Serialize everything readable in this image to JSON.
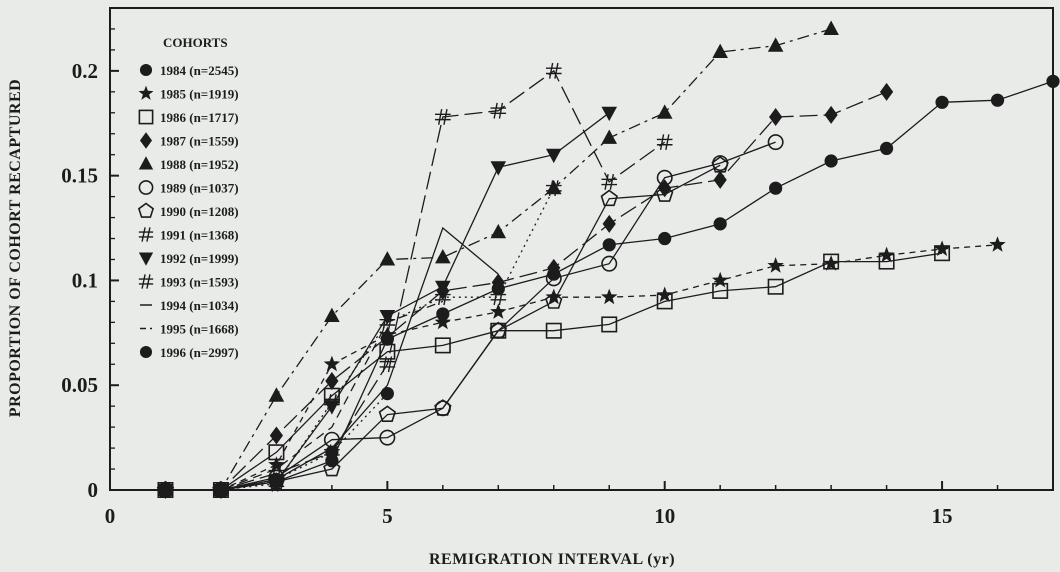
{
  "chart_data": {
    "type": "line",
    "title": "",
    "xlabel": "REMIGRATION INTERVAL (yr)",
    "ylabel": "PROPORTION OF COHORT RECAPTURED",
    "xlim": [
      0,
      17
    ],
    "ylim": [
      0,
      0.23
    ],
    "x_ticks": [
      0,
      5,
      10,
      15
    ],
    "x_tick_labels": [
      "0",
      "5",
      "10",
      "15"
    ],
    "y_ticks": [
      0,
      0.05,
      0.1,
      0.15,
      0.2
    ],
    "y_tick_labels": [
      "0",
      "0.05",
      "0.1",
      "0.15",
      "0.2"
    ],
    "grid": false,
    "legend": {
      "title": "COHORTS",
      "placement": "top-left"
    },
    "colors": {
      "ink": "#1c1c1c",
      "background": "#e9ebe9"
    },
    "series": [
      {
        "name": "1984 (n=2545)",
        "marker": "circle",
        "dash": "solid",
        "x": [
          1,
          2,
          3,
          4,
          5,
          6,
          7,
          8,
          9,
          10,
          11,
          12,
          13,
          14,
          15,
          16,
          17
        ],
        "y": [
          0,
          0,
          0.004,
          0.014,
          0.072,
          0.084,
          0.096,
          0.103,
          0.117,
          0.12,
          0.127,
          0.144,
          0.157,
          0.163,
          0.185,
          0.186,
          0.195
        ]
      },
      {
        "name": "1985 (n=1919)",
        "marker": "star",
        "dash": "short-dash",
        "x": [
          1,
          2,
          3,
          4,
          5,
          6,
          7,
          8,
          9,
          10,
          11,
          12,
          13,
          14,
          15,
          16
        ],
        "y": [
          0,
          0,
          0.012,
          0.06,
          0.074,
          0.08,
          0.085,
          0.092,
          0.092,
          0.093,
          0.1,
          0.107,
          0.108,
          0.112,
          0.115,
          0.117
        ]
      },
      {
        "name": "1986 (n=1717)",
        "marker": "square-open",
        "dash": "solid",
        "x": [
          1,
          2,
          3,
          4,
          5,
          6,
          7,
          8,
          9,
          10,
          11,
          12,
          13,
          14,
          15
        ],
        "y": [
          0,
          0,
          0.018,
          0.045,
          0.066,
          0.069,
          0.076,
          0.076,
          0.079,
          0.09,
          0.095,
          0.097,
          0.109,
          0.109,
          0.113
        ]
      },
      {
        "name": "1987 (n=1559)",
        "marker": "diamond",
        "dash": "long-dash",
        "x": [
          1,
          2,
          3,
          4,
          5,
          6,
          7,
          8,
          9,
          10,
          11,
          12,
          13,
          14
        ],
        "y": [
          0,
          0,
          0.026,
          0.052,
          0.073,
          0.095,
          0.099,
          0.106,
          0.127,
          0.144,
          0.148,
          0.178,
          0.179,
          0.19
        ]
      },
      {
        "name": "1988 (n=1952)",
        "marker": "triangle",
        "dash": "dash-dot",
        "x": [
          1,
          2,
          3,
          4,
          5,
          6,
          7,
          8,
          9,
          10,
          11,
          12,
          13
        ],
        "y": [
          0,
          0,
          0.045,
          0.083,
          0.11,
          0.111,
          0.123,
          0.144,
          0.168,
          0.18,
          0.209,
          0.212,
          0.22
        ]
      },
      {
        "name": "1989 (n=1037)",
        "marker": "circle-open",
        "dash": "solid",
        "x": [
          1,
          2,
          3,
          4,
          5,
          6,
          7,
          8,
          9,
          10,
          11,
          12
        ],
        "y": [
          0,
          0,
          0.006,
          0.024,
          0.025,
          0.039,
          0.076,
          0.101,
          0.108,
          0.149,
          0.156,
          0.166
        ]
      },
      {
        "name": "1990 (n=1208)",
        "marker": "pentagon-open",
        "dash": "solid",
        "x": [
          1,
          2,
          3,
          4,
          5,
          6,
          7,
          8,
          9,
          10,
          11
        ],
        "y": [
          0,
          0,
          0.004,
          0.01,
          0.036,
          0.039,
          0.076,
          0.09,
          0.139,
          0.141,
          0.155
        ]
      },
      {
        "name": "1991 (n=1368)",
        "marker": "hash",
        "dash": "long-dash",
        "x": [
          1,
          2,
          3,
          4,
          5,
          6,
          7,
          8,
          9,
          10
        ],
        "y": [
          0,
          0,
          0.008,
          0.018,
          0.06,
          0.178,
          0.181,
          0.2,
          0.147,
          0.166
        ]
      },
      {
        "name": "1992 (n=1999)",
        "marker": "triangle-down",
        "dash": "solid",
        "x": [
          1,
          2,
          3,
          4,
          5,
          6,
          7,
          8,
          9
        ],
        "y": [
          0,
          0,
          0.004,
          0.04,
          0.083,
          0.097,
          0.154,
          0.16,
          0.18
        ]
      },
      {
        "name": "1993 (n=1593)",
        "marker": "hash",
        "dash": "dotted",
        "x": [
          1,
          2,
          3,
          4,
          5,
          6,
          7,
          8
        ],
        "y": [
          0,
          0,
          0.003,
          0.042,
          0.08,
          0.092,
          0.092,
          0.144
        ]
      },
      {
        "name": "1994 (n=1034)",
        "marker": "none",
        "dash": "solid",
        "x": [
          1,
          2,
          3,
          4,
          5,
          6,
          7
        ],
        "y": [
          0,
          0,
          0.005,
          0.02,
          0.05,
          0.125,
          0.103
        ]
      },
      {
        "name": "1995 (n=1668)",
        "marker": "none",
        "dash": "dash",
        "x": [
          1,
          2,
          3,
          4,
          5,
          6
        ],
        "y": [
          0,
          0,
          0.01,
          0.03,
          0.08,
          0.09
        ]
      },
      {
        "name": "1996 (n=2997)",
        "marker": "circle",
        "dash": "dotted",
        "x": [
          1,
          2,
          3,
          4,
          5
        ],
        "y": [
          0,
          0,
          0.005,
          0.018,
          0.046
        ]
      }
    ]
  }
}
